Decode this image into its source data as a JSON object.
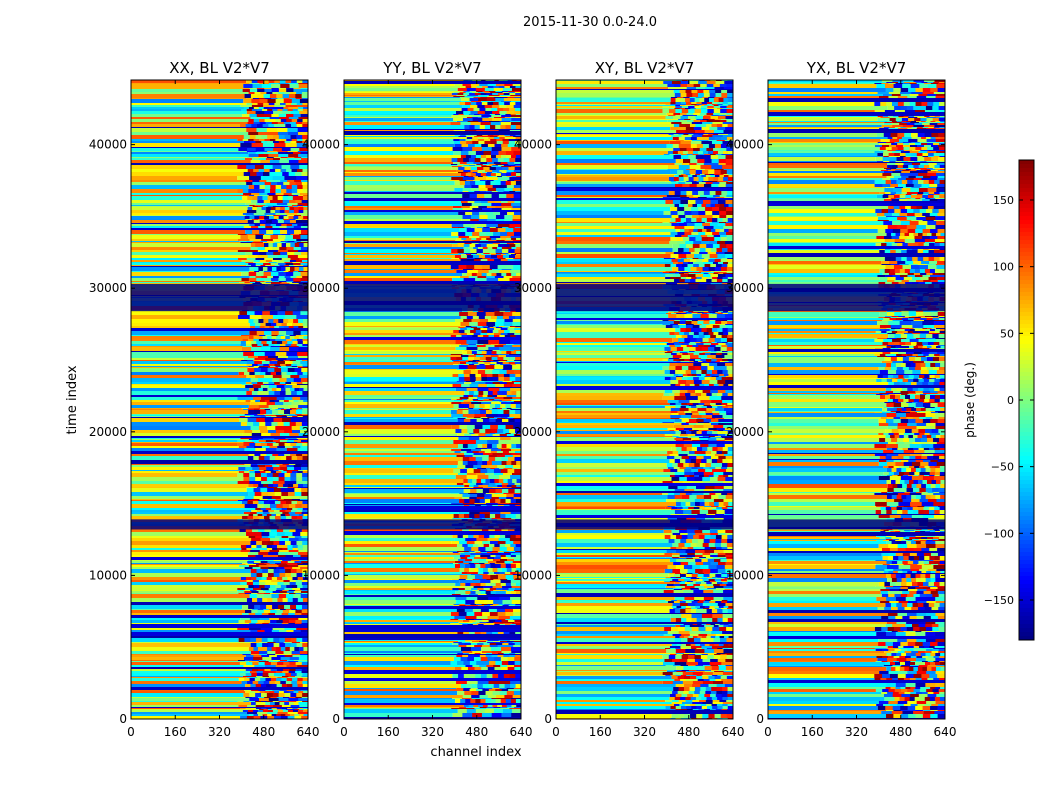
{
  "figure": {
    "suptitle": "2015-11-30 0.0-24.0",
    "xlabel": "channel index",
    "ylabel": "time index"
  },
  "colorbar": {
    "label": "phase (deg.)",
    "range": [
      -180,
      180
    ],
    "ticks": [
      150,
      100,
      50,
      0,
      -50,
      -100,
      -150
    ],
    "tick_labels": [
      "150",
      "100",
      "50",
      "0",
      "−50",
      "−100",
      "−150"
    ],
    "colormap": "jet",
    "colors": [
      "#00007f",
      "#0000ff",
      "#007fff",
      "#00ffff",
      "#7fff7f",
      "#ffff00",
      "#ff7f00",
      "#ff0000",
      "#7f0000"
    ]
  },
  "chart_data": {
    "type": "heatmap",
    "panels": [
      {
        "title": "XX, BL V2*V7"
      },
      {
        "title": "YY, BL V2*V7"
      },
      {
        "title": "XY, BL V2*V7"
      },
      {
        "title": "YX, BL V2*V7"
      }
    ],
    "xlim": [
      0,
      640
    ],
    "ylim": [
      0,
      44500
    ],
    "xticks": [
      0,
      160,
      320,
      480,
      640
    ],
    "xtick_labels": [
      "0",
      "160",
      "320",
      "480",
      "640"
    ],
    "yticks": [
      0,
      10000,
      20000,
      30000,
      40000
    ],
    "ytick_labels": [
      "0",
      "10000",
      "20000",
      "30000",
      "40000"
    ],
    "zlabel": "phase (deg.)",
    "zlim": [
      -180,
      180
    ]
  }
}
